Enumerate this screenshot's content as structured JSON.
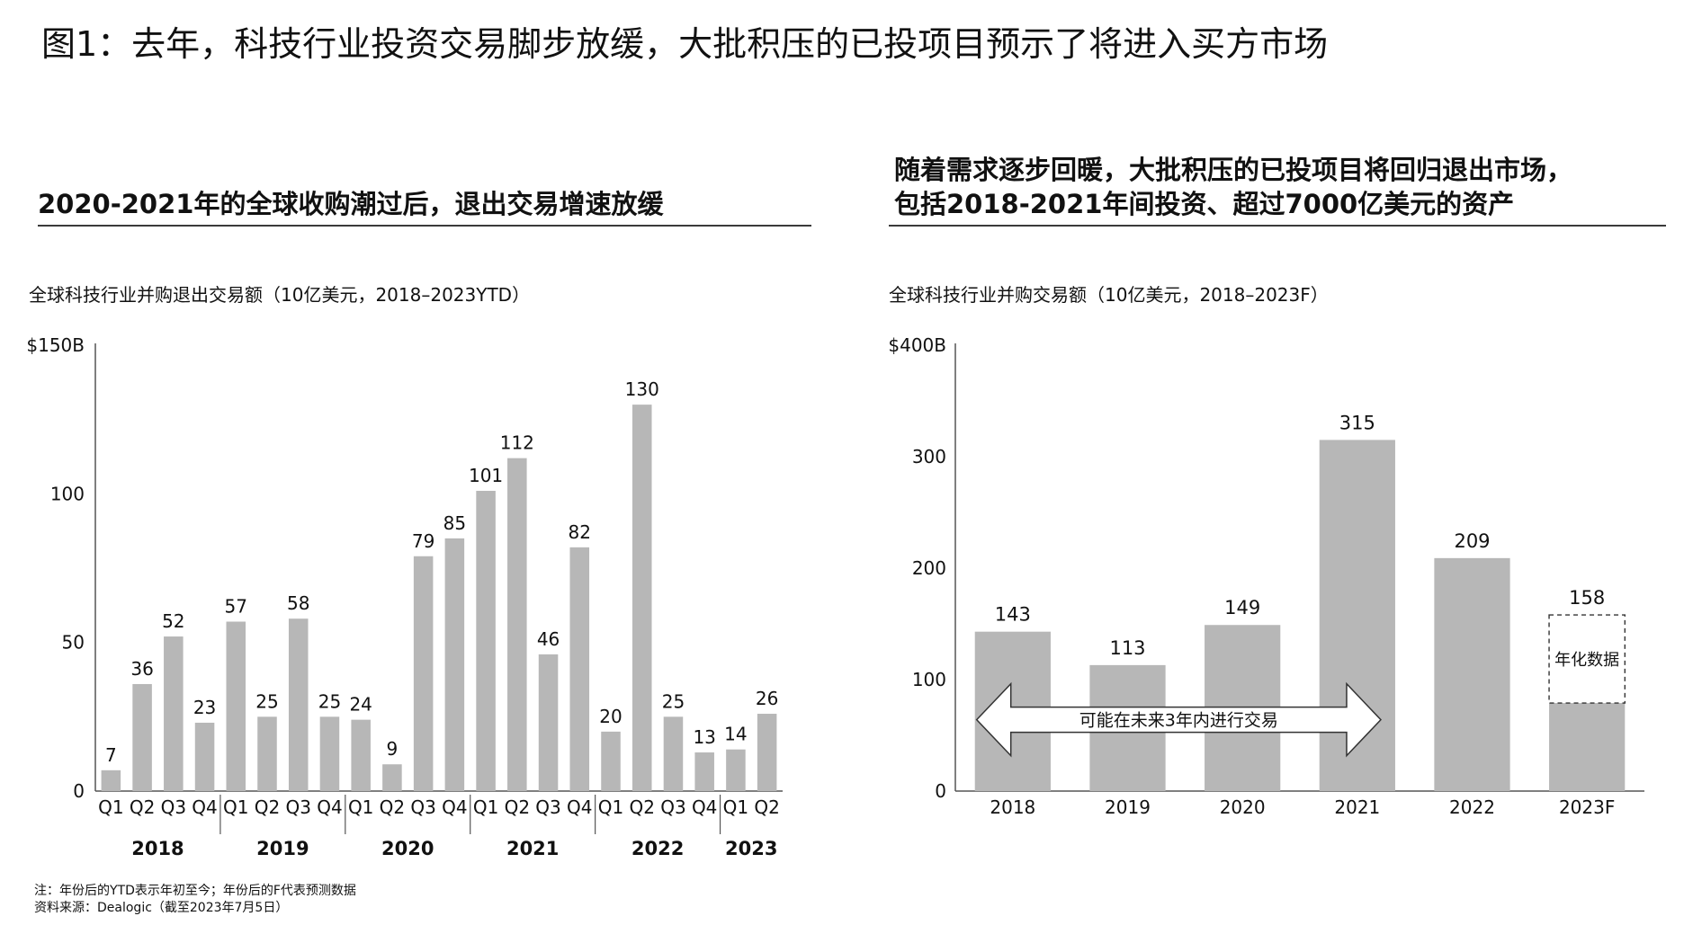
{
  "page": {
    "title": "图1：去年，科技行业投资交易脚步放缓，大批积压的已投项目预示了将进入买方市场",
    "notes": [
      "注：年份后的YTD表示年初至今；年份后的F代表预测数据",
      "资料来源：Dealogic（截至2023年7月5日）"
    ]
  },
  "panels": {
    "left": {
      "heading": "2020-2021年的全球收购潮过后，退出交易增速放缓",
      "subtitle": "全球科技行业并购退出交易额（10亿美元，2018–2023YTD）"
    },
    "right": {
      "heading_line1": "随着需求逐步回暖，大批积压的已投项目将回归退出市场，",
      "heading_line2": "包括2018-2021年间投资、超过7000亿美元的资产",
      "subtitle": "全球科技行业并购交易额（10亿美元，2018–2023F）"
    }
  },
  "colors": {
    "bar": "#b7b7b7",
    "axis": "#555555",
    "text": "#111111",
    "rule": "#3a3a3a"
  },
  "chart_data": [
    {
      "type": "bar",
      "title": "全球科技行业并购退出交易额（10亿美元，2018–2023YTD）",
      "ylim": [
        0,
        150
      ],
      "ytick_labels": [
        "0",
        "50",
        "100",
        "$150B"
      ],
      "yticks": [
        0,
        50,
        100,
        150
      ],
      "categories": [
        "Q1",
        "Q2",
        "Q3",
        "Q4",
        "Q1",
        "Q2",
        "Q3",
        "Q4",
        "Q1",
        "Q2",
        "Q3",
        "Q4",
        "Q1",
        "Q2",
        "Q3",
        "Q4",
        "Q1",
        "Q2",
        "Q3",
        "Q4",
        "Q1",
        "Q2"
      ],
      "values": [
        7,
        36,
        52,
        23,
        57,
        25,
        58,
        25,
        24,
        9,
        79,
        85,
        101,
        112,
        46,
        82,
        20,
        130,
        25,
        13,
        14,
        26
      ],
      "groups": [
        {
          "label": "2018",
          "count": 4
        },
        {
          "label": "2019",
          "count": 4
        },
        {
          "label": "2020",
          "count": 4
        },
        {
          "label": "2021",
          "count": 4
        },
        {
          "label": "2022",
          "count": 4
        },
        {
          "label": "2023",
          "count": 2
        }
      ],
      "grid": false
    },
    {
      "type": "bar",
      "title": "全球科技行业并购交易额（10亿美元，2018–2023F）",
      "ylim": [
        0,
        400
      ],
      "ytick_labels": [
        "0",
        "100",
        "200",
        "300",
        "$400B"
      ],
      "yticks": [
        0,
        100,
        200,
        300,
        400
      ],
      "categories": [
        "2018",
        "2019",
        "2020",
        "2021",
        "2022",
        "2023F"
      ],
      "values": [
        143,
        113,
        149,
        315,
        209,
        158
      ],
      "actual_2023_value": 79,
      "annotations": {
        "arrow_label": "可能在未来3年内进行交易",
        "arrow_span": [
          "2018",
          "2021"
        ],
        "annualized_label": "年化数据"
      },
      "grid": false
    }
  ]
}
